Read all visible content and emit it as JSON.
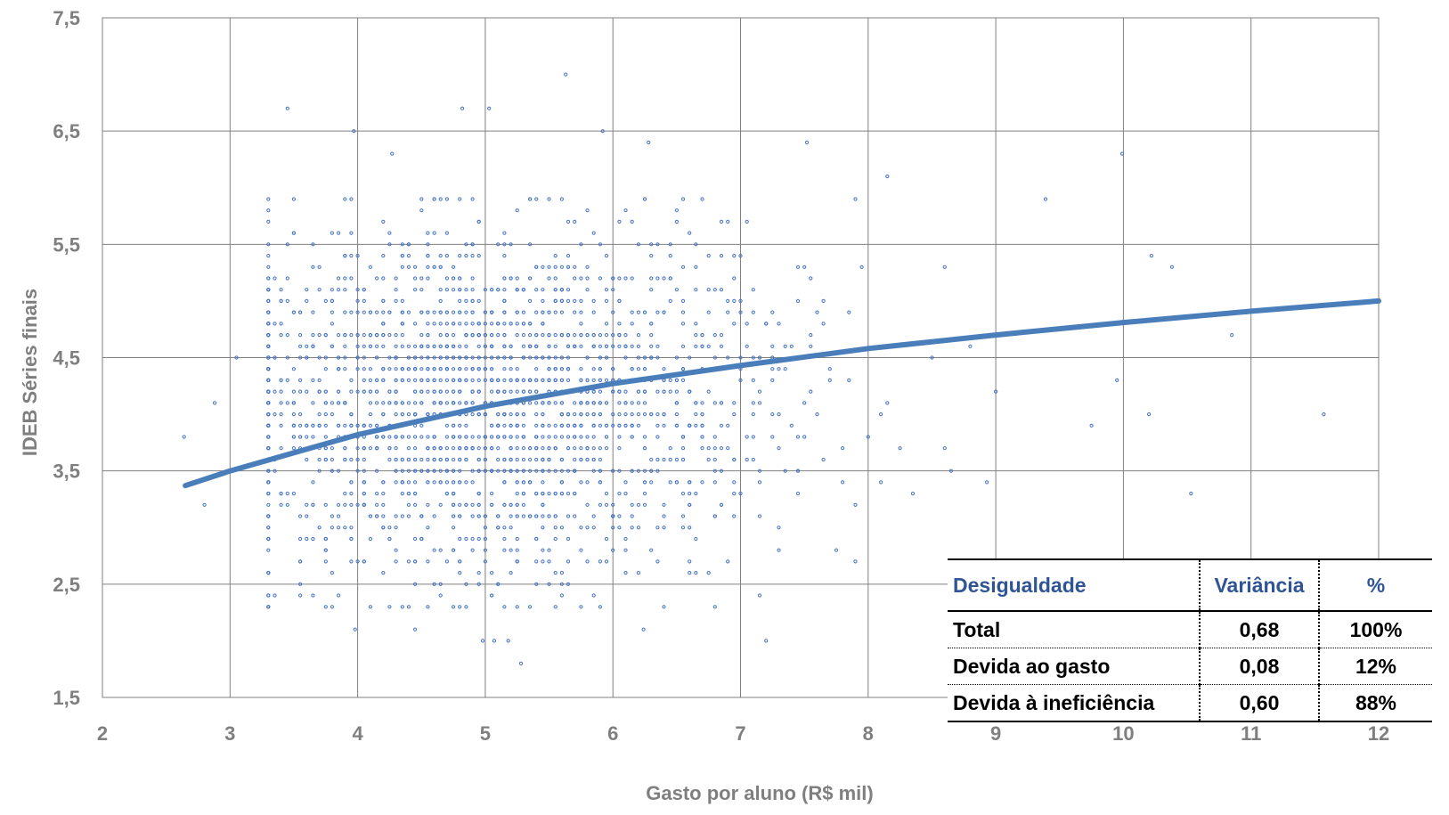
{
  "chart_data": {
    "type": "scatter",
    "title": "",
    "xlabel": "Gasto por aluno (R$ mil)",
    "ylabel": "IDEB Séries finais",
    "xlim": [
      2,
      12
    ],
    "ylim": [
      1.5,
      7.5
    ],
    "x_ticks": [
      "2",
      "3",
      "4",
      "5",
      "6",
      "7",
      "8",
      "9",
      "10",
      "11",
      "12"
    ],
    "y_ticks": [
      "1,5",
      "2,5",
      "3,5",
      "4,5",
      "5,5",
      "6,5",
      "7,5"
    ],
    "grid": true,
    "colors": {
      "points": "#4472c4",
      "trend": "#4a7ebb",
      "grid": "#808080"
    },
    "trendline": {
      "type": "logarithmic",
      "points": [
        {
          "x": 2.65,
          "y": 3.37
        },
        {
          "x": 3,
          "y": 3.5
        },
        {
          "x": 4,
          "y": 3.82
        },
        {
          "x": 5,
          "y": 4.07
        },
        {
          "x": 6,
          "y": 4.27
        },
        {
          "x": 7,
          "y": 4.43
        },
        {
          "x": 8,
          "y": 4.58
        },
        {
          "x": 9,
          "y": 4.7
        },
        {
          "x": 10,
          "y": 4.81
        },
        {
          "x": 11,
          "y": 4.91
        },
        {
          "x": 12,
          "y": 5.0
        }
      ]
    },
    "scatter_summary": {
      "description": "dense cloud of schools",
      "x_center": 5.0,
      "x_spread": 1.1,
      "y_center": 4.1,
      "y_spread": 0.75,
      "count": 2200
    },
    "scatter_outliers": [
      {
        "x": 5.63,
        "y": 7.0
      },
      {
        "x": 3.45,
        "y": 6.7
      },
      {
        "x": 4.82,
        "y": 6.7
      },
      {
        "x": 5.03,
        "y": 6.7
      },
      {
        "x": 3.97,
        "y": 6.5
      },
      {
        "x": 5.92,
        "y": 6.5
      },
      {
        "x": 7.52,
        "y": 6.4
      },
      {
        "x": 9.99,
        "y": 6.3
      },
      {
        "x": 4.27,
        "y": 6.3
      },
      {
        "x": 6.28,
        "y": 6.4
      },
      {
        "x": 8.15,
        "y": 6.1
      },
      {
        "x": 9.39,
        "y": 5.9
      },
      {
        "x": 10.2,
        "y": 4.0
      },
      {
        "x": 11.57,
        "y": 4.0
      },
      {
        "x": 10.53,
        "y": 3.3
      },
      {
        "x": 10.85,
        "y": 4.7
      },
      {
        "x": 10.38,
        "y": 5.3
      },
      {
        "x": 10.22,
        "y": 5.4
      },
      {
        "x": 2.64,
        "y": 3.8
      },
      {
        "x": 2.8,
        "y": 3.2
      },
      {
        "x": 2.88,
        "y": 4.1
      },
      {
        "x": 3.05,
        "y": 4.5
      },
      {
        "x": 5.28,
        "y": 1.8
      },
      {
        "x": 4.98,
        "y": 2.0
      },
      {
        "x": 5.07,
        "y": 2.0
      },
      {
        "x": 5.18,
        "y": 2.0
      },
      {
        "x": 7.2,
        "y": 2.0
      },
      {
        "x": 6.24,
        "y": 2.1
      },
      {
        "x": 4.45,
        "y": 2.1
      },
      {
        "x": 3.98,
        "y": 2.1
      },
      {
        "x": 8.93,
        "y": 3.4
      },
      {
        "x": 9.75,
        "y": 3.9
      },
      {
        "x": 9.95,
        "y": 4.3
      },
      {
        "x": 8.5,
        "y": 4.5
      },
      {
        "x": 8.8,
        "y": 4.6
      }
    ]
  },
  "table": {
    "headers": [
      "Desigualdade",
      "Variância",
      "%"
    ],
    "rows": [
      [
        "Total",
        "0,68",
        "100%"
      ],
      [
        "Devida ao gasto",
        "0,08",
        "12%"
      ],
      [
        "Devida à ineficiência",
        "0,60",
        "88%"
      ]
    ]
  }
}
